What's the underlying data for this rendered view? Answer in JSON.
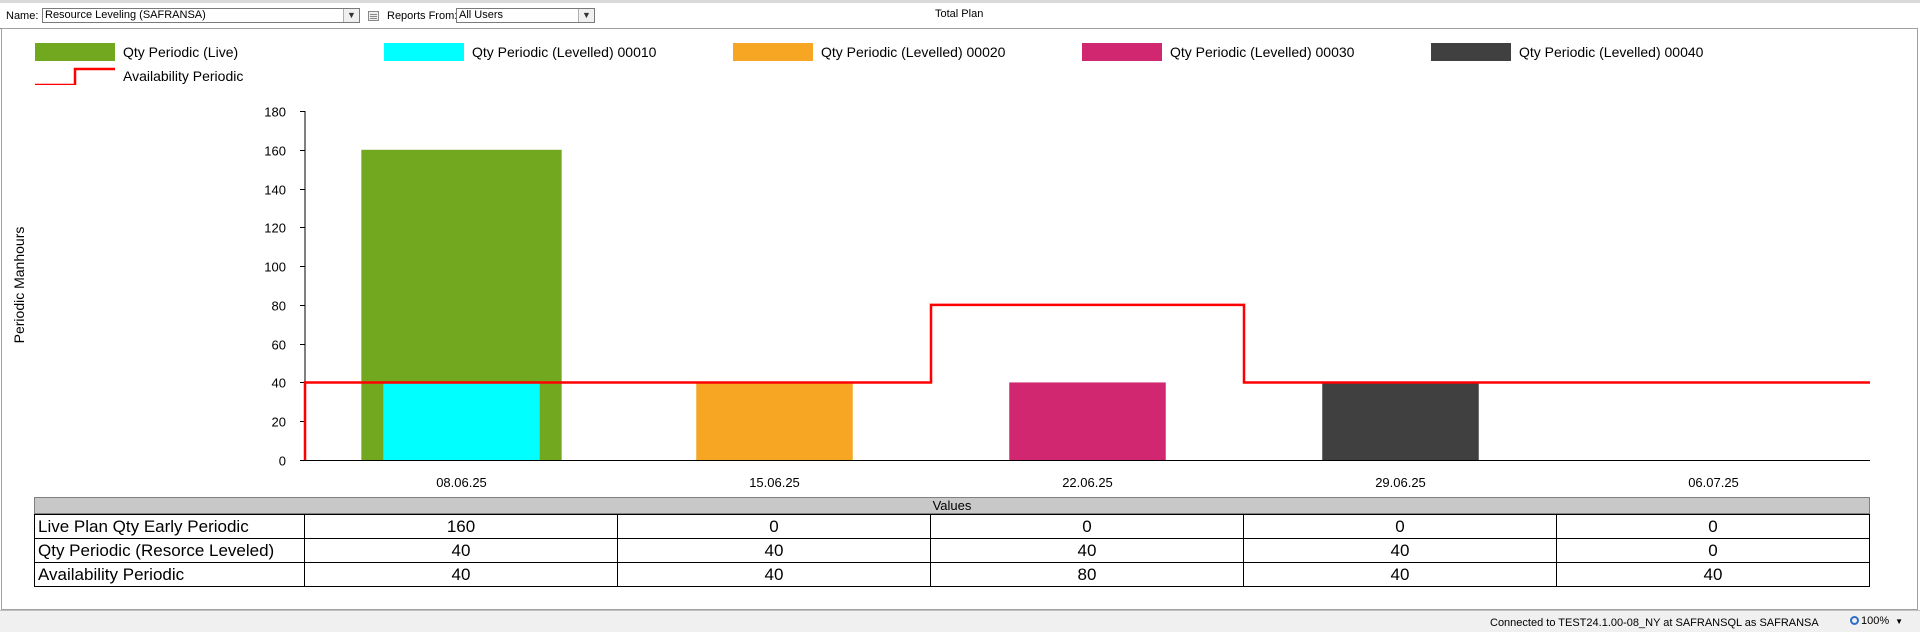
{
  "toolbar": {
    "name_label": "Name:",
    "name_value": "Resource Leveling (SAFRANSA)",
    "reports_from_label": "Reports From:",
    "reports_from_value": "All Users",
    "plan_title": "Total Plan"
  },
  "colors": {
    "live": "#72a81f",
    "levelled_00010": "#00ffff",
    "levelled_00020": "#f7a623",
    "levelled_00030": "#d12670",
    "levelled_00040": "#404040",
    "availability": "#ff0000"
  },
  "legend": {
    "items": [
      "Qty Periodic (Live)",
      "Qty Periodic (Levelled) 00010",
      "Qty Periodic (Levelled) 00020",
      "Qty Periodic (Levelled) 00030",
      "Qty Periodic (Levelled) 00040",
      "Availability Periodic"
    ]
  },
  "chart_data": {
    "type": "bar",
    "ylabel": "Periodic Manhours",
    "xlabel": "",
    "ylim": [
      0,
      180
    ],
    "yticks": [
      0,
      20,
      40,
      60,
      80,
      100,
      120,
      140,
      160,
      180
    ],
    "categories": [
      "08.06.25",
      "15.06.25",
      "22.06.25",
      "29.06.25",
      "06.07.25"
    ],
    "grid": false,
    "legend_position": "top",
    "series": [
      {
        "name": "Qty Periodic (Live)",
        "kind": "bar",
        "values": [
          160,
          0,
          0,
          0,
          0
        ]
      },
      {
        "name": "Qty Periodic (Levelled) 00010",
        "kind": "bar",
        "values": [
          40,
          0,
          0,
          0,
          0
        ]
      },
      {
        "name": "Qty Periodic (Levelled) 00020",
        "kind": "bar",
        "values": [
          0,
          40,
          0,
          0,
          0
        ]
      },
      {
        "name": "Qty Periodic (Levelled) 00030",
        "kind": "bar",
        "values": [
          0,
          0,
          40,
          0,
          0
        ]
      },
      {
        "name": "Qty Periodic (Levelled) 00040",
        "kind": "bar",
        "values": [
          0,
          0,
          0,
          40,
          0
        ]
      },
      {
        "name": "Availability Periodic",
        "kind": "step-line",
        "values": [
          40,
          40,
          80,
          40,
          40
        ]
      }
    ]
  },
  "values_table": {
    "header": "Values",
    "rows": [
      {
        "label": "Live Plan Qty Early Periodic",
        "values": [
          "160",
          "0",
          "0",
          "0",
          "0"
        ]
      },
      {
        "label": "Qty Periodic (Resorce Leveled)",
        "values": [
          "40",
          "40",
          "40",
          "40",
          "0"
        ]
      },
      {
        "label": "Availability Periodic",
        "values": [
          "40",
          "40",
          "80",
          "40",
          "40"
        ]
      }
    ]
  },
  "status": {
    "connection": "Connected to TEST24.1.00-08_NY at SAFRANSQL as SAFRANSA",
    "zoom": "100%"
  }
}
